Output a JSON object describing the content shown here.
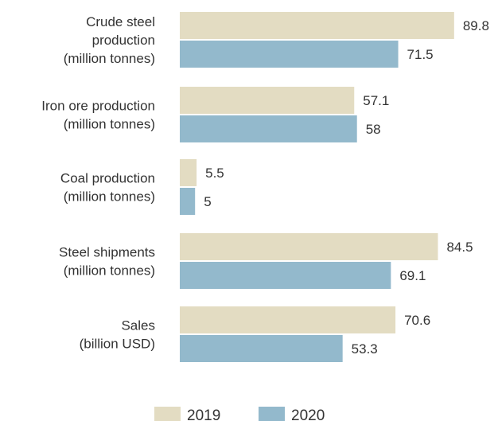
{
  "chart_data": {
    "type": "bar",
    "orientation": "horizontal",
    "categories": [
      [
        "Crude steel",
        "production",
        "(million tonnes)"
      ],
      [
        "Iron ore production",
        "(million tonnes)"
      ],
      [
        "Coal production",
        "(million tonnes)"
      ],
      [
        "Steel shipments",
        "(million tonnes)"
      ],
      [
        "Sales",
        "(billion USD)"
      ]
    ],
    "series": [
      {
        "name": "2019",
        "color": "#e3dcc2",
        "values": [
          89.8,
          57.1,
          5.5,
          84.5,
          70.6
        ],
        "labels": [
          "89.8",
          "57.1",
          "5.5",
          "84.5",
          "70.6"
        ]
      },
      {
        "name": "2020",
        "color": "#93b9cc",
        "values": [
          71.5,
          58,
          5,
          69.1,
          53.3
        ],
        "labels": [
          "71.5",
          "58",
          "5",
          "69.1",
          "53.3"
        ]
      }
    ],
    "legend_position": "bottom",
    "grid": false
  }
}
